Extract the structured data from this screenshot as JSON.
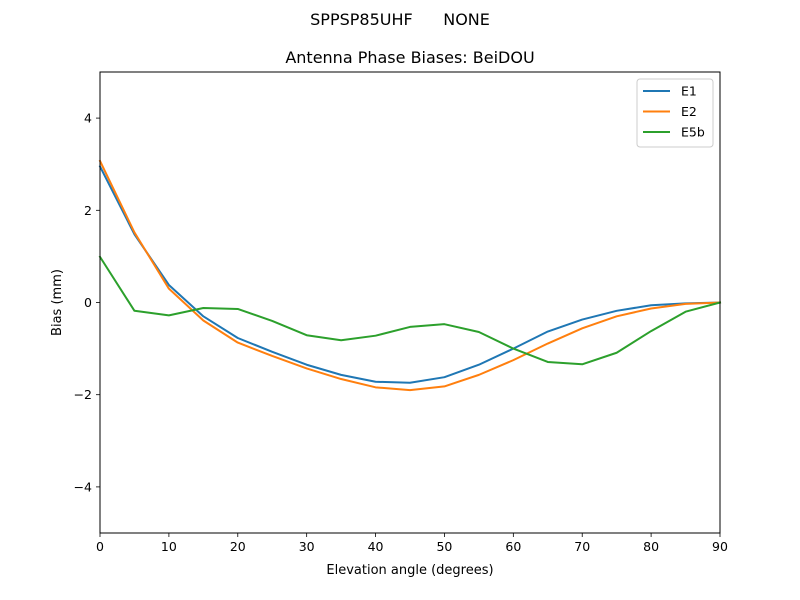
{
  "chart_data": {
    "type": "line",
    "suptitle": "SPPSP85UHF      NONE",
    "title": "Antenna Phase Biases: BeiDOU",
    "xlabel": "Elevation angle (degrees)",
    "ylabel": "Bias (mm)",
    "xlim": [
      0,
      90
    ],
    "ylim": [
      -5,
      5
    ],
    "xticks": [
      0,
      10,
      20,
      30,
      40,
      50,
      60,
      70,
      80,
      90
    ],
    "yticks": [
      -4,
      -2,
      0,
      2,
      4
    ],
    "ytick_labels": [
      "−4",
      "−2",
      "0",
      "2",
      "4"
    ],
    "grid": false,
    "legend_position": "top-right",
    "x": [
      0,
      5,
      10,
      15,
      20,
      25,
      30,
      35,
      40,
      45,
      50,
      55,
      60,
      65,
      70,
      75,
      80,
      85,
      90
    ],
    "series": [
      {
        "name": "E1",
        "color": "#1f77b4",
        "values": [
          2.95,
          1.48,
          0.38,
          -0.3,
          -0.77,
          -1.07,
          -1.35,
          -1.57,
          -1.72,
          -1.74,
          -1.62,
          -1.35,
          -1.0,
          -0.63,
          -0.37,
          -0.18,
          -0.06,
          -0.02,
          0.0
        ]
      },
      {
        "name": "E2",
        "color": "#ff7f0e",
        "values": [
          3.07,
          1.52,
          0.3,
          -0.39,
          -0.87,
          -1.16,
          -1.43,
          -1.66,
          -1.84,
          -1.9,
          -1.82,
          -1.57,
          -1.25,
          -0.89,
          -0.56,
          -0.3,
          -0.13,
          -0.03,
          0.0
        ]
      },
      {
        "name": "E5b",
        "color": "#2ca02c",
        "values": [
          0.99,
          -0.18,
          -0.28,
          -0.12,
          -0.14,
          -0.4,
          -0.71,
          -0.82,
          -0.72,
          -0.53,
          -0.47,
          -0.64,
          -1.0,
          -1.29,
          -1.34,
          -1.09,
          -0.62,
          -0.2,
          0.0
        ]
      }
    ]
  }
}
